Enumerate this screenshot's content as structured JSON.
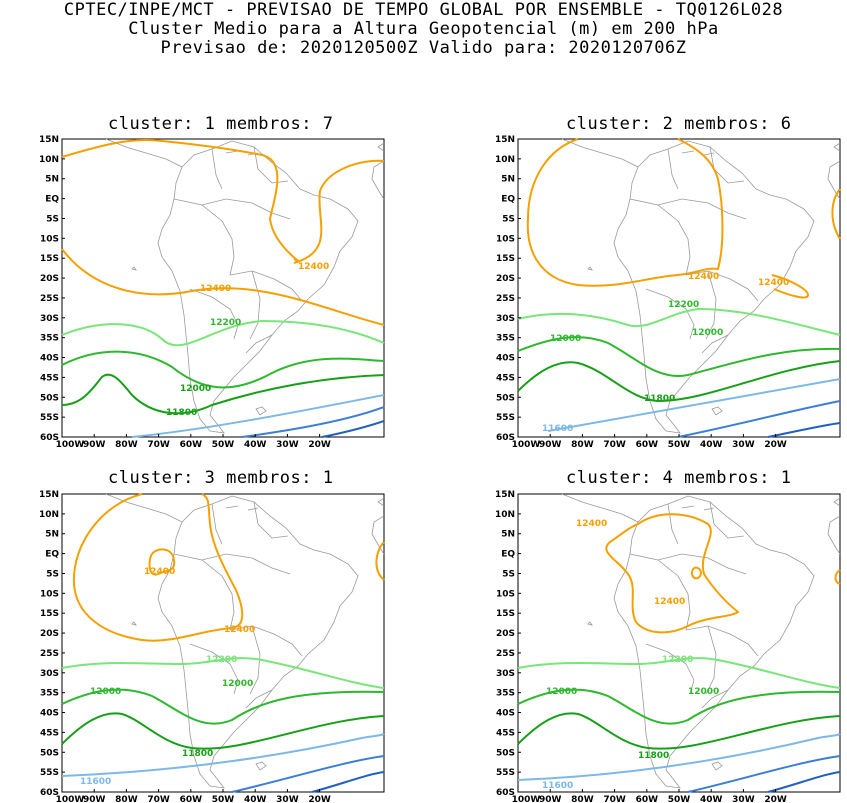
{
  "header": {
    "line1": "CPTEC/INPE/MCT - PREVISAO DE TEMPO GLOBAL POR ENSEMBLE - TQ0126L028",
    "line2": "Cluster Medio para a Altura Geopotencial (m) em 200 hPa",
    "line3": "Previsao de: 2020120500Z    Valido para: 2020120706Z"
  },
  "axes": {
    "lat_labels": [
      "15N",
      "10N",
      "5N",
      "EQ",
      "5S",
      "10S",
      "15S",
      "20S",
      "25S",
      "30S",
      "35S",
      "40S",
      "45S",
      "50S",
      "55S",
      "60S"
    ],
    "lon_labels": [
      "100W",
      "90W",
      "80W",
      "70W",
      "60W",
      "50W",
      "40W",
      "30W",
      "20W"
    ]
  },
  "colors": {
    "c12400": "#f5a000",
    "c12200": "#78e678",
    "c12000": "#2db82d",
    "c11800": "#16a016",
    "c11600": "#7cb8e8",
    "cdeep": "#3a7fd6",
    "cdeeper": "#1f5fc0",
    "coast": "#9a9a9a"
  },
  "panels": [
    {
      "title": "cluster: 1   membros: 7",
      "labels": {
        "a": "12400",
        "b": "12400",
        "c": "12200",
        "d": "12000",
        "e": "11800"
      }
    },
    {
      "title": "cluster: 2   membros: 6",
      "labels": {
        "a": "12400",
        "b": "12400",
        "c": "12200",
        "d": "12000",
        "e": "12000",
        "f": "11800",
        "g": "11600"
      }
    },
    {
      "title": "cluster: 3   membros: 1",
      "labels": {
        "a": "12400",
        "b": "12400",
        "c": "12200",
        "d": "12000",
        "e": "12000",
        "f": "11800",
        "g": "11600"
      }
    },
    {
      "title": "cluster: 4   membros: 1",
      "labels": {
        "a": "12400",
        "b": "12400",
        "c": "12200",
        "d": "12000",
        "e": "12000",
        "f": "11800",
        "g": "11600"
      }
    }
  ]
}
